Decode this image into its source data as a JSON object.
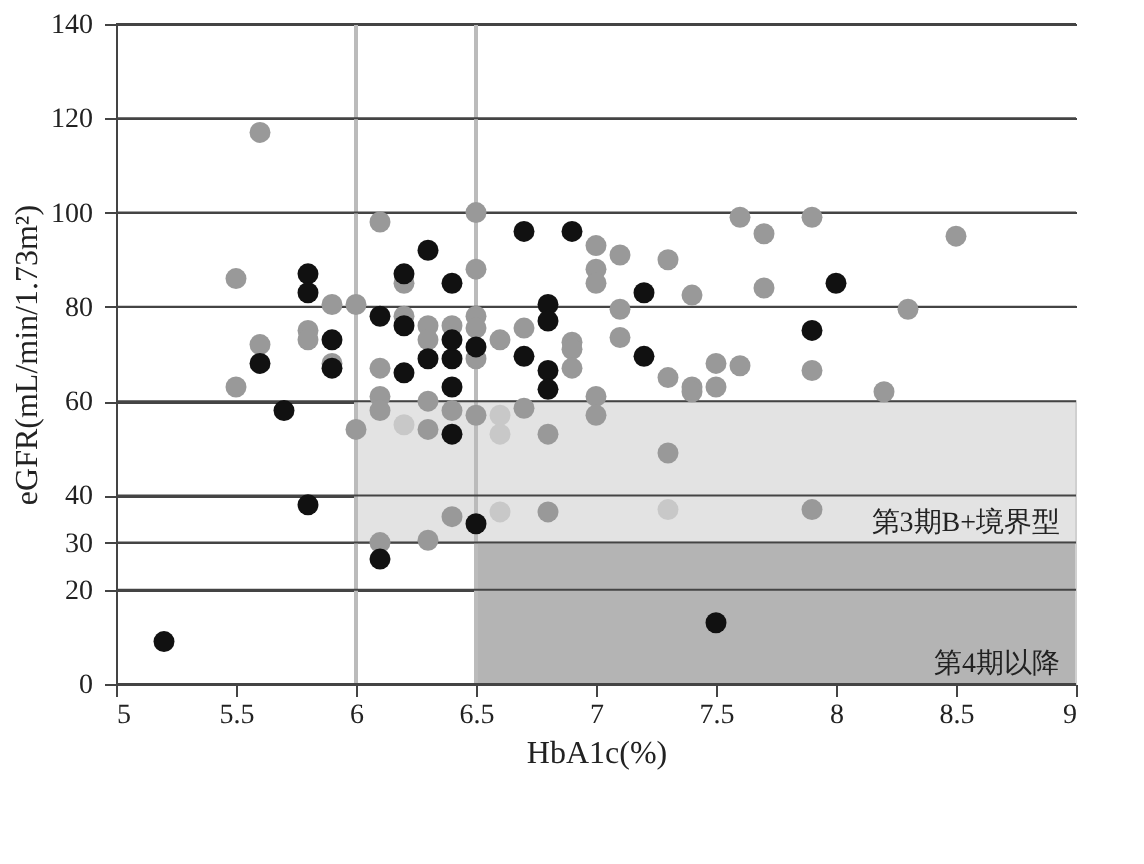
{
  "chart_data": {
    "type": "scatter",
    "xlabel": "HbA1c(%)",
    "ylabel": "eGFR(mL/min/1.73m²)",
    "xlim": [
      5,
      9
    ],
    "xticks": [
      5,
      5.5,
      6,
      6.5,
      7,
      7.5,
      8,
      8.5,
      9
    ],
    "ylim": [
      0,
      140
    ],
    "yticks": [
      0,
      20,
      30,
      40,
      60,
      80,
      100,
      120,
      140
    ],
    "grid": "y",
    "marker": "circle",
    "series": [
      {
        "color": "#999999",
        "x": [
          5.6,
          5.5,
          6.1,
          5.6,
          5.5,
          5.9,
          6.0,
          5.8,
          5.8,
          5.9,
          6.1,
          6.2,
          6.2,
          6.3,
          6.4,
          6.3,
          6.5,
          6.5,
          6.5,
          6.5,
          6.5,
          6.6,
          6.7,
          6.9,
          6.9,
          6.9,
          7.0,
          7.1,
          7.0,
          7.0,
          7.3,
          7.4,
          7.1,
          7.1,
          7.3,
          7.4,
          7.5,
          7.6,
          7.7,
          7.9,
          8.5,
          7.7,
          8.3,
          7.6,
          7.9,
          8.2,
          7.5,
          6.0,
          6.1,
          6.1,
          6.3,
          6.3,
          6.4,
          6.5,
          6.7,
          6.8,
          6.1,
          6.3,
          6.4,
          6.8,
          7.0,
          7.0,
          7.3,
          7.9,
          7.4
        ],
        "values": [
          117,
          86,
          98,
          72,
          63,
          80.5,
          80.5,
          75,
          73,
          68,
          67,
          85,
          78,
          76,
          76,
          73,
          100,
          88,
          69,
          78,
          75.5,
          73,
          75.5,
          72.5,
          71,
          67,
          93,
          91,
          88,
          85,
          90,
          82.5,
          79.5,
          73.5,
          65,
          63,
          68,
          99,
          95.5,
          99,
          95,
          84,
          79.5,
          67.5,
          66.5,
          62,
          63,
          54,
          61,
          58,
          60,
          54,
          58,
          57,
          58.5,
          53,
          30,
          30.5,
          35.5,
          36.5,
          61,
          57,
          49,
          37,
          62
        ]
      },
      {
        "color": "#c8c8c8",
        "x": [
          6.2,
          6.6,
          6.6,
          6.6,
          7.3
        ],
        "values": [
          55,
          57,
          53,
          36.5,
          37
        ]
      },
      {
        "color": "#111111",
        "x": [
          5.2,
          5.8,
          5.7,
          5.6,
          5.9,
          6.1,
          6.2,
          6.3,
          6.4,
          6.4,
          6.4,
          6.5,
          6.7,
          6.8,
          6.8,
          7.2,
          7.5,
          5.8,
          5.8,
          5.9,
          6.1,
          6.2,
          6.2,
          6.3,
          6.4,
          6.4,
          6.7,
          6.9,
          6.8,
          6.8,
          7.2,
          6.5,
          8.0,
          7.9
        ],
        "values": [
          9,
          38,
          58,
          68,
          67,
          26.5,
          66,
          69,
          69,
          63,
          53,
          34,
          69.5,
          66.5,
          62.5,
          69.5,
          13,
          87,
          83,
          73,
          78,
          87,
          76,
          92,
          85,
          73,
          96,
          96,
          80.5,
          77,
          83,
          71.5,
          85,
          75
        ]
      }
    ],
    "ref_lines": [
      {
        "axis": "x",
        "value": 6,
        "color": "#bbbbbb"
      },
      {
        "axis": "x",
        "value": 6.5,
        "color": "#bbbbbb"
      }
    ],
    "bands": [
      {
        "axis": "y",
        "from": 30,
        "to": 60,
        "label": "第3期B+境界型",
        "color": "#e3e3e3"
      },
      {
        "axis": "y",
        "from": 0,
        "to": 30,
        "label": "第4期以降",
        "color": "#b4b4b4"
      }
    ]
  }
}
